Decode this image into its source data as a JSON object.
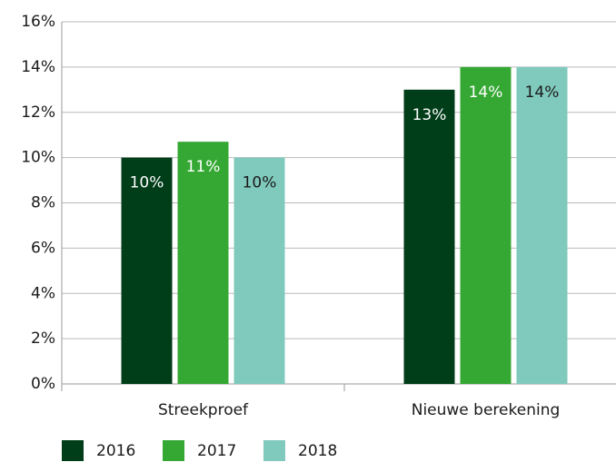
{
  "chart_data": {
    "type": "bar",
    "categories": [
      "Streekproef",
      "Nieuwe berekening"
    ],
    "series": [
      {
        "name": "2016",
        "color": "#003d19",
        "label_color": "#ffffff",
        "values": [
          10.0,
          13.0
        ],
        "value_labels": [
          "10%",
          "13%"
        ]
      },
      {
        "name": "2017",
        "color": "#34a833",
        "label_color": "#ffffff",
        "values": [
          10.7,
          14.0
        ],
        "value_labels": [
          "11%",
          "14%"
        ]
      },
      {
        "name": "2018",
        "color": "#80c9bd",
        "label_color": "#1a1a1a",
        "values": [
          10.0,
          14.0
        ],
        "value_labels": [
          "10%",
          "14%"
        ]
      }
    ],
    "ylim": [
      0,
      16
    ],
    "yticks": [
      {
        "value": 0,
        "label": "0%"
      },
      {
        "value": 2,
        "label": "2%"
      },
      {
        "value": 4,
        "label": "4%"
      },
      {
        "value": 6,
        "label": "6%"
      },
      {
        "value": 8,
        "label": "8%"
      },
      {
        "value": 10,
        "label": "10%"
      },
      {
        "value": 12,
        "label": "12%"
      },
      {
        "value": 14,
        "label": "14%"
      },
      {
        "value": 16,
        "label": "16%"
      }
    ],
    "grid": true,
    "legend": "bottom"
  }
}
